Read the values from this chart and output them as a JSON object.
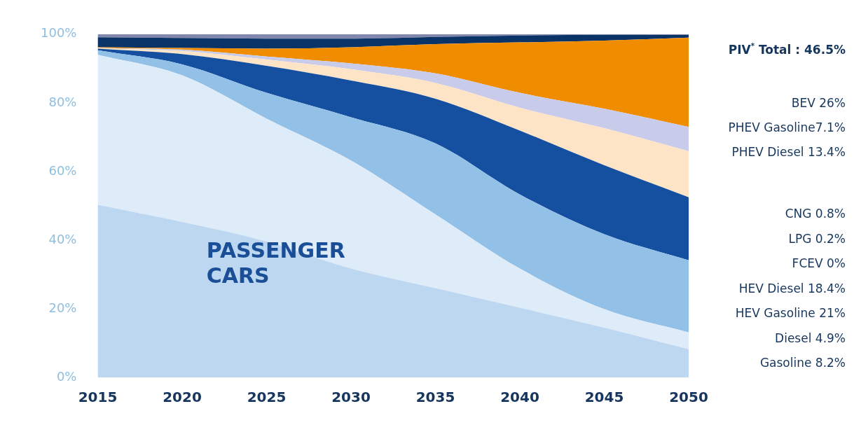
{
  "chart_data": {
    "type": "area",
    "stacked": true,
    "grid": false,
    "x": [
      2015,
      2020,
      2025,
      2030,
      2035,
      2040,
      2045,
      2050
    ],
    "xlim": [
      2015,
      2050
    ],
    "xticks": [
      2015,
      2020,
      2025,
      2030,
      2035,
      2040,
      2045,
      2050
    ],
    "ylim": [
      0,
      100
    ],
    "yticks": [
      {
        "value": 0,
        "label": "0%"
      },
      {
        "value": 20,
        "label": "20%"
      },
      {
        "value": 40,
        "label": "40%"
      },
      {
        "value": 60,
        "label": "60%"
      },
      {
        "value": 80,
        "label": "80%"
      },
      {
        "value": 100,
        "label": "100%"
      }
    ],
    "series": [
      {
        "color": "#bdd7f0",
        "values": [
          50.3,
          45.3,
          39.6,
          31.7,
          26.0,
          20.3,
          14.5,
          8.2
        ]
      },
      {
        "color": "#deebf8",
        "values": [
          43.7,
          42.7,
          35.8,
          31.5,
          21.5,
          11.4,
          5.4,
          4.9
        ]
      },
      {
        "color": "#93c0e6",
        "values": [
          1.3,
          3.2,
          7.5,
          12.6,
          20.7,
          21.6,
          21.8,
          21
        ]
      },
      {
        "color": "#1550a0",
        "values": [
          0.5,
          3.0,
          7.9,
          10.7,
          13.0,
          18.6,
          20.1,
          18.4
        ]
      },
      {
        "color": "#fde4c6",
        "values": [
          0.1,
          0.9,
          1.8,
          3.3,
          4.6,
          6.7,
          10.8,
          13.4
        ]
      },
      {
        "color": "#c8cbe9",
        "values": [
          0.1,
          0.4,
          0.9,
          1.7,
          2.8,
          4.3,
          5.7,
          7.1
        ]
      },
      {
        "color": "#f08c00",
        "values": [
          0.2,
          0.5,
          2.3,
          4.7,
          8.5,
          14.7,
          19.8,
          26
        ]
      },
      {
        "color": "#0a3367",
        "values": [
          2.9,
          2.9,
          2.9,
          2.5,
          2.1,
          2.0,
          1.7,
          0.8
        ]
      },
      {
        "color": "#8288ad",
        "values": [
          0.9,
          1.1,
          1.3,
          1.3,
          0.8,
          0.4,
          0.2,
          0.2
        ]
      }
    ],
    "annotations": [
      "PIV$^{*}$ Total : 46.5%",
      "PASSENGER CARS",
      "BEV 26%",
      "PHEV Gasoline7.1%",
      "PHEV Diesel 13.4%",
      "CNG 0.8%",
      "LPG 0.2%",
      "FCEV 0%",
      "HEV Diesel 18.4%",
      "HEV Gasoline 21%",
      "Diesel 4.9%",
      "Gasoline 8.2%"
    ]
  }
}
